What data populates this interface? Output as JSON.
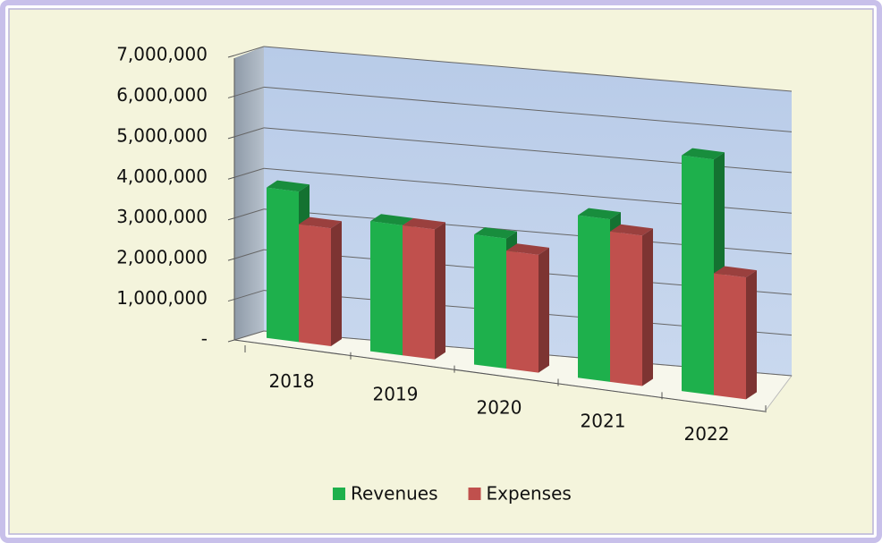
{
  "chart_data": {
    "type": "bar3d",
    "categories": [
      "2018",
      "2019",
      "2020",
      "2021",
      "2022"
    ],
    "series": [
      {
        "name": "Revenues",
        "color": "#1eb04c",
        "values": [
          3700000,
          3200000,
          3200000,
          4000000,
          5800000
        ]
      },
      {
        "name": "Expenses",
        "color": "#c0504d",
        "values": [
          2900000,
          3200000,
          2900000,
          3700000,
          3000000
        ]
      }
    ],
    "ylim": [
      0,
      7000000
    ],
    "yticks": [
      {
        "value": 0,
        "label": "-"
      },
      {
        "value": 1000000,
        "label": "1,000,000"
      },
      {
        "value": 2000000,
        "label": "2,000,000"
      },
      {
        "value": 3000000,
        "label": "3,000,000"
      },
      {
        "value": 4000000,
        "label": "4,000,000"
      },
      {
        "value": 5000000,
        "label": "5,000,000"
      },
      {
        "value": 6000000,
        "label": "6,000,000"
      },
      {
        "value": 7000000,
        "label": "7,000,000"
      }
    ],
    "grid": true,
    "legend": "bottom"
  }
}
